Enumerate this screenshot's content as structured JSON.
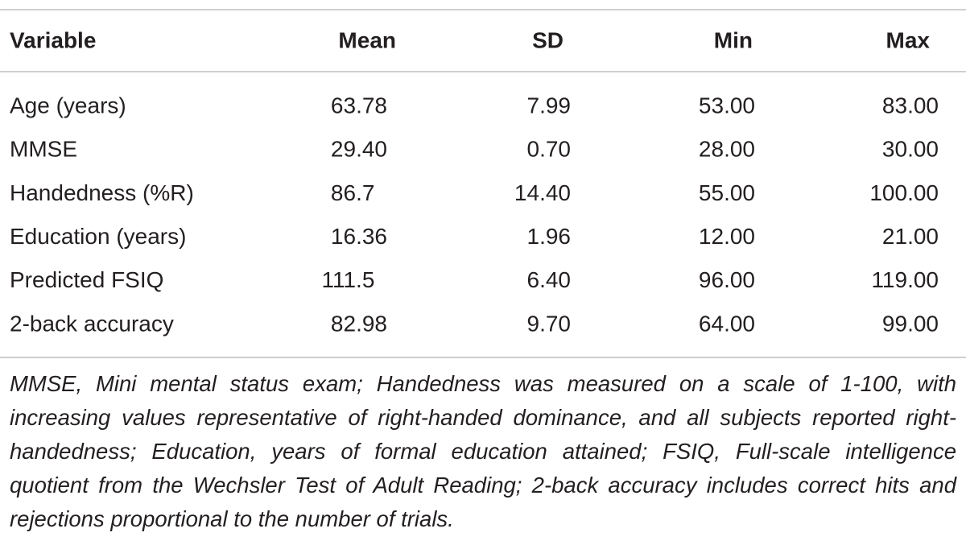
{
  "table": {
    "header": [
      "Variable",
      "Mean",
      "SD",
      "Min",
      "Max"
    ],
    "rows": [
      [
        "Age (years)",
        "63.78",
        "7.99",
        "53.00",
        "83.00"
      ],
      [
        "MMSE",
        "29.40",
        "0.70",
        "28.00",
        "30.00"
      ],
      [
        "Handedness (%R)",
        "86.7",
        "14.40",
        "55.00",
        "100.00"
      ],
      [
        "Education (years)",
        "16.36",
        "1.96",
        "12.00",
        "21.00"
      ],
      [
        "Predicted FSIQ",
        "111.5",
        "6.40",
        "96.00",
        "119.00"
      ],
      [
        "2-back accuracy",
        "82.98",
        "9.70",
        "64.00",
        "99.00"
      ]
    ],
    "footnote": "MMSE, Mini mental status exam; Handedness was measured on a scale of 1-100, with increasing values representative of right-handed dominance, and all subjects reported right-handedness; Education, years of formal education attained; FSIQ, Full-scale intelligence quotient from the Wechsler Test of Adult Reading; 2-back accuracy includes correct hits and rejections proportional to the number of trials."
  }
}
